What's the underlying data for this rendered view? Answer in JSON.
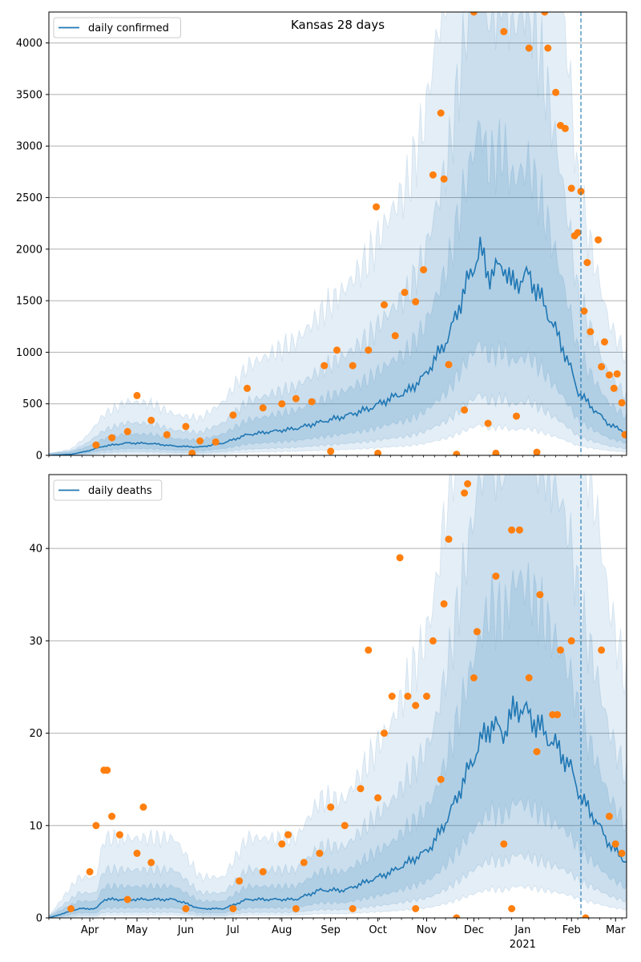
{
  "chart_data": [
    {
      "type": "line",
      "title": "Kansas 28 days",
      "ylim": [
        0,
        4300
      ],
      "yticks": [
        0,
        500,
        1000,
        1500,
        2000,
        2500,
        3000,
        3500,
        4000
      ],
      "grid": "y",
      "legend": {
        "position": "top-left",
        "entries": [
          "daily confirmed"
        ]
      },
      "x_range": [
        "2020-03-06",
        "2021-03-08"
      ],
      "vline_date": "2021-02-07",
      "line_points": [
        [
          "2020-03-06",
          0
        ],
        [
          "2020-03-20",
          10
        ],
        [
          "2020-03-30",
          40
        ],
        [
          "2020-04-10",
          90
        ],
        [
          "2020-04-25",
          120
        ],
        [
          "2020-05-10",
          115
        ],
        [
          "2020-05-25",
          90
        ],
        [
          "2020-06-10",
          80
        ],
        [
          "2020-06-25",
          120
        ],
        [
          "2020-07-10",
          200
        ],
        [
          "2020-07-25",
          230
        ],
        [
          "2020-08-10",
          260
        ],
        [
          "2020-08-25",
          320
        ],
        [
          "2020-09-10",
          380
        ],
        [
          "2020-09-25",
          450
        ],
        [
          "2020-10-10",
          560
        ],
        [
          "2020-10-20",
          620
        ],
        [
          "2020-10-30",
          760
        ],
        [
          "2020-11-05",
          900
        ],
        [
          "2020-11-15",
          1150
        ],
        [
          "2020-11-25",
          1600
        ],
        [
          "2020-12-05",
          2000
        ],
        [
          "2020-12-10",
          1750
        ],
        [
          "2020-12-20",
          1850
        ],
        [
          "2020-12-25",
          1650
        ],
        [
          "2021-01-05",
          1750
        ],
        [
          "2021-01-15",
          1450
        ],
        [
          "2021-01-25",
          1100
        ],
        [
          "2021-02-01",
          820
        ],
        [
          "2021-02-05",
          620
        ],
        [
          "2021-02-15",
          450
        ],
        [
          "2021-02-25",
          300
        ],
        [
          "2021-03-08",
          220
        ]
      ],
      "scatter_points": [
        [
          "2020-04-05",
          100
        ],
        [
          "2020-04-15",
          170
        ],
        [
          "2020-04-25",
          230
        ],
        [
          "2020-05-01",
          580
        ],
        [
          "2020-05-10",
          340
        ],
        [
          "2020-05-20",
          200
        ],
        [
          "2020-06-01",
          280
        ],
        [
          "2020-06-10",
          140
        ],
        [
          "2020-06-20",
          130
        ],
        [
          "2020-07-01",
          390
        ],
        [
          "2020-07-10",
          650
        ],
        [
          "2020-07-20",
          460
        ],
        [
          "2020-08-01",
          500
        ],
        [
          "2020-08-10",
          550
        ],
        [
          "2020-08-20",
          520
        ],
        [
          "2020-08-28",
          870
        ],
        [
          "2020-09-05",
          1020
        ],
        [
          "2020-09-15",
          870
        ],
        [
          "2020-09-25",
          1020
        ],
        [
          "2020-09-30",
          2410
        ],
        [
          "2020-10-05",
          1460
        ],
        [
          "2020-10-12",
          1160
        ],
        [
          "2020-10-18",
          1580
        ],
        [
          "2020-10-25",
          1490
        ],
        [
          "2020-10-30",
          1800
        ],
        [
          "2020-11-05",
          2720
        ],
        [
          "2020-11-10",
          3320
        ],
        [
          "2020-11-12",
          2680
        ],
        [
          "2020-11-15",
          880
        ],
        [
          "2020-11-25",
          440
        ],
        [
          "2020-12-01",
          4310
        ],
        [
          "2020-12-10",
          310
        ],
        [
          "2020-12-20",
          4110
        ],
        [
          "2020-12-28",
          380
        ],
        [
          "2021-01-05",
          3950
        ],
        [
          "2021-01-15",
          4300
        ],
        [
          "2021-01-17",
          3950
        ],
        [
          "2021-01-22",
          3520
        ],
        [
          "2021-01-25",
          3200
        ],
        [
          "2021-01-28",
          3170
        ],
        [
          "2021-02-01",
          2590
        ],
        [
          "2021-02-03",
          2130
        ],
        [
          "2021-02-05",
          2160
        ],
        [
          "2021-02-07",
          2560
        ],
        [
          "2021-02-09",
          1400
        ],
        [
          "2021-02-11",
          1870
        ],
        [
          "2021-02-13",
          1200
        ],
        [
          "2021-02-18",
          2090
        ],
        [
          "2021-02-20",
          860
        ],
        [
          "2021-02-22",
          1100
        ],
        [
          "2021-02-25",
          780
        ],
        [
          "2021-02-28",
          650
        ],
        [
          "2021-03-02",
          790
        ],
        [
          "2021-03-05",
          510
        ],
        [
          "2021-03-07",
          200
        ],
        [
          "2020-06-05",
          20
        ],
        [
          "2020-09-01",
          40
        ],
        [
          "2020-10-01",
          20
        ],
        [
          "2020-11-20",
          10
        ],
        [
          "2020-12-15",
          20
        ],
        [
          "2021-01-10",
          30
        ]
      ]
    },
    {
      "type": "line",
      "ylim": [
        0,
        48
      ],
      "yticks": [
        0,
        10,
        20,
        30,
        40
      ],
      "grid": "y",
      "legend": {
        "position": "top-left",
        "entries": [
          "daily deaths"
        ]
      },
      "x_range": [
        "2020-03-06",
        "2021-03-08"
      ],
      "vline_date": "2021-02-07",
      "xtick_labels": [
        "Apr",
        "May",
        "Jun",
        "Jul",
        "Aug",
        "Sep",
        "Oct",
        "Nov",
        "Dec",
        "Jan",
        "Feb",
        "Mar"
      ],
      "xtick_dates": [
        "2020-04-01",
        "2020-05-01",
        "2020-06-01",
        "2020-07-01",
        "2020-08-01",
        "2020-09-01",
        "2020-10-01",
        "2020-11-01",
        "2020-12-01",
        "2021-01-01",
        "2021-02-01",
        "2021-03-01"
      ],
      "year_label": "2021",
      "line_points": [
        [
          "2020-03-06",
          0
        ],
        [
          "2020-03-25",
          1
        ],
        [
          "2020-04-05",
          1
        ],
        [
          "2020-04-10",
          2
        ],
        [
          "2020-05-10",
          2
        ],
        [
          "2020-05-25",
          2
        ],
        [
          "2020-06-10",
          1
        ],
        [
          "2020-06-25",
          1
        ],
        [
          "2020-07-10",
          2
        ],
        [
          "2020-07-25",
          2
        ],
        [
          "2020-08-10",
          2
        ],
        [
          "2020-08-25",
          3
        ],
        [
          "2020-09-10",
          3
        ],
        [
          "2020-09-25",
          4
        ],
        [
          "2020-10-10",
          5
        ],
        [
          "2020-10-20",
          6
        ],
        [
          "2020-10-30",
          7
        ],
        [
          "2020-11-05",
          8
        ],
        [
          "2020-11-15",
          11
        ],
        [
          "2020-11-25",
          15
        ],
        [
          "2020-12-05",
          19
        ],
        [
          "2020-12-12",
          21
        ],
        [
          "2020-12-20",
          20
        ],
        [
          "2020-12-28",
          23
        ],
        [
          "2021-01-05",
          22
        ],
        [
          "2021-01-15",
          20
        ],
        [
          "2021-01-25",
          18
        ],
        [
          "2021-02-01",
          16
        ],
        [
          "2021-02-07",
          13
        ],
        [
          "2021-02-15",
          11
        ],
        [
          "2021-02-25",
          8
        ],
        [
          "2021-03-08",
          6
        ]
      ],
      "scatter_points": [
        [
          "2020-04-01",
          5
        ],
        [
          "2020-04-05",
          10
        ],
        [
          "2020-04-10",
          16
        ],
        [
          "2020-04-12",
          16
        ],
        [
          "2020-04-15",
          11
        ],
        [
          "2020-04-20",
          9
        ],
        [
          "2020-05-01",
          7
        ],
        [
          "2020-05-05",
          12
        ],
        [
          "2020-05-10",
          6
        ],
        [
          "2020-07-05",
          4
        ],
        [
          "2020-07-20",
          5
        ],
        [
          "2020-08-01",
          8
        ],
        [
          "2020-08-05",
          9
        ],
        [
          "2020-08-15",
          6
        ],
        [
          "2020-08-25",
          7
        ],
        [
          "2020-09-01",
          12
        ],
        [
          "2020-09-10",
          10
        ],
        [
          "2020-09-20",
          14
        ],
        [
          "2020-09-25",
          29
        ],
        [
          "2020-10-01",
          13
        ],
        [
          "2020-10-05",
          20
        ],
        [
          "2020-10-10",
          24
        ],
        [
          "2020-10-15",
          39
        ],
        [
          "2020-10-20",
          24
        ],
        [
          "2020-10-25",
          23
        ],
        [
          "2020-11-01",
          24
        ],
        [
          "2020-11-05",
          30
        ],
        [
          "2020-11-10",
          15
        ],
        [
          "2020-11-12",
          34
        ],
        [
          "2020-11-15",
          41
        ],
        [
          "2020-11-25",
          46
        ],
        [
          "2020-11-27",
          47
        ],
        [
          "2020-12-01",
          26
        ],
        [
          "2020-12-03",
          31
        ],
        [
          "2020-12-15",
          37
        ],
        [
          "2020-12-20",
          8
        ],
        [
          "2020-12-25",
          42
        ],
        [
          "2020-12-30",
          42
        ],
        [
          "2021-01-05",
          26
        ],
        [
          "2021-01-10",
          18
        ],
        [
          "2021-01-12",
          35
        ],
        [
          "2021-01-20",
          22
        ],
        [
          "2021-01-23",
          22
        ],
        [
          "2021-01-25",
          29
        ],
        [
          "2021-02-01",
          30
        ],
        [
          "2021-02-20",
          29
        ],
        [
          "2021-02-25",
          11
        ],
        [
          "2021-03-01",
          8
        ],
        [
          "2021-03-05",
          7
        ],
        [
          "2020-03-20",
          1
        ],
        [
          "2020-04-25",
          2
        ],
        [
          "2020-06-01",
          1
        ],
        [
          "2020-07-01",
          1
        ],
        [
          "2020-08-10",
          1
        ],
        [
          "2020-09-15",
          1
        ],
        [
          "2020-10-25",
          1
        ],
        [
          "2020-11-20",
          0
        ],
        [
          "2020-12-25",
          1
        ],
        [
          "2021-02-10",
          0
        ]
      ]
    }
  ]
}
